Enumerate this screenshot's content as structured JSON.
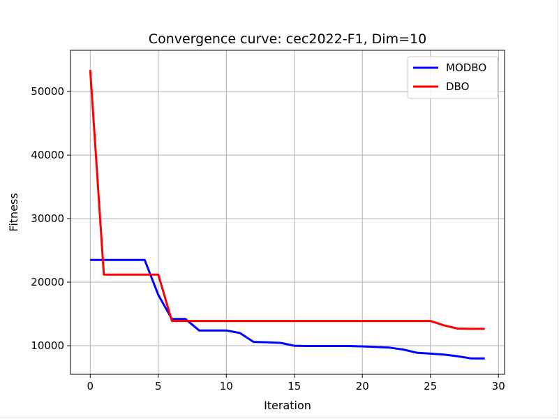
{
  "chart_data": {
    "type": "line",
    "title": "Convergence curve:  cec2022-F1, Dim=10",
    "xlabel": "Iteration",
    "ylabel": "Fitness",
    "xlim": [
      -1.45,
      30.45
    ],
    "ylim": [
      5500,
      56500
    ],
    "xticks": [
      0,
      5,
      10,
      15,
      20,
      25,
      30
    ],
    "yticks": [
      10000,
      20000,
      30000,
      40000,
      50000
    ],
    "grid": true,
    "legend_position": "top-right",
    "x": [
      0,
      1,
      2,
      3,
      4,
      5,
      6,
      7,
      8,
      9,
      10,
      11,
      12,
      13,
      14,
      15,
      16,
      17,
      18,
      19,
      20,
      21,
      22,
      23,
      24,
      25,
      26,
      27,
      28,
      29
    ],
    "series": [
      {
        "name": "MODBO",
        "color": "#0000ff",
        "values": [
          23500,
          23500,
          23500,
          23500,
          23500,
          18000,
          14200,
          14200,
          12400,
          12400,
          12400,
          12000,
          10600,
          10550,
          10450,
          10000,
          9950,
          9950,
          9950,
          9950,
          9900,
          9800,
          9700,
          9400,
          8900,
          8750,
          8600,
          8350,
          8000,
          8000
        ]
      },
      {
        "name": "DBO",
        "color": "#ff0000",
        "values": [
          53400,
          21200,
          21200,
          21200,
          21200,
          21200,
          13900,
          13900,
          13900,
          13900,
          13900,
          13900,
          13900,
          13900,
          13900,
          13900,
          13900,
          13900,
          13900,
          13900,
          13900,
          13900,
          13900,
          13900,
          13900,
          13900,
          13200,
          12700,
          12650,
          12650
        ]
      }
    ]
  }
}
